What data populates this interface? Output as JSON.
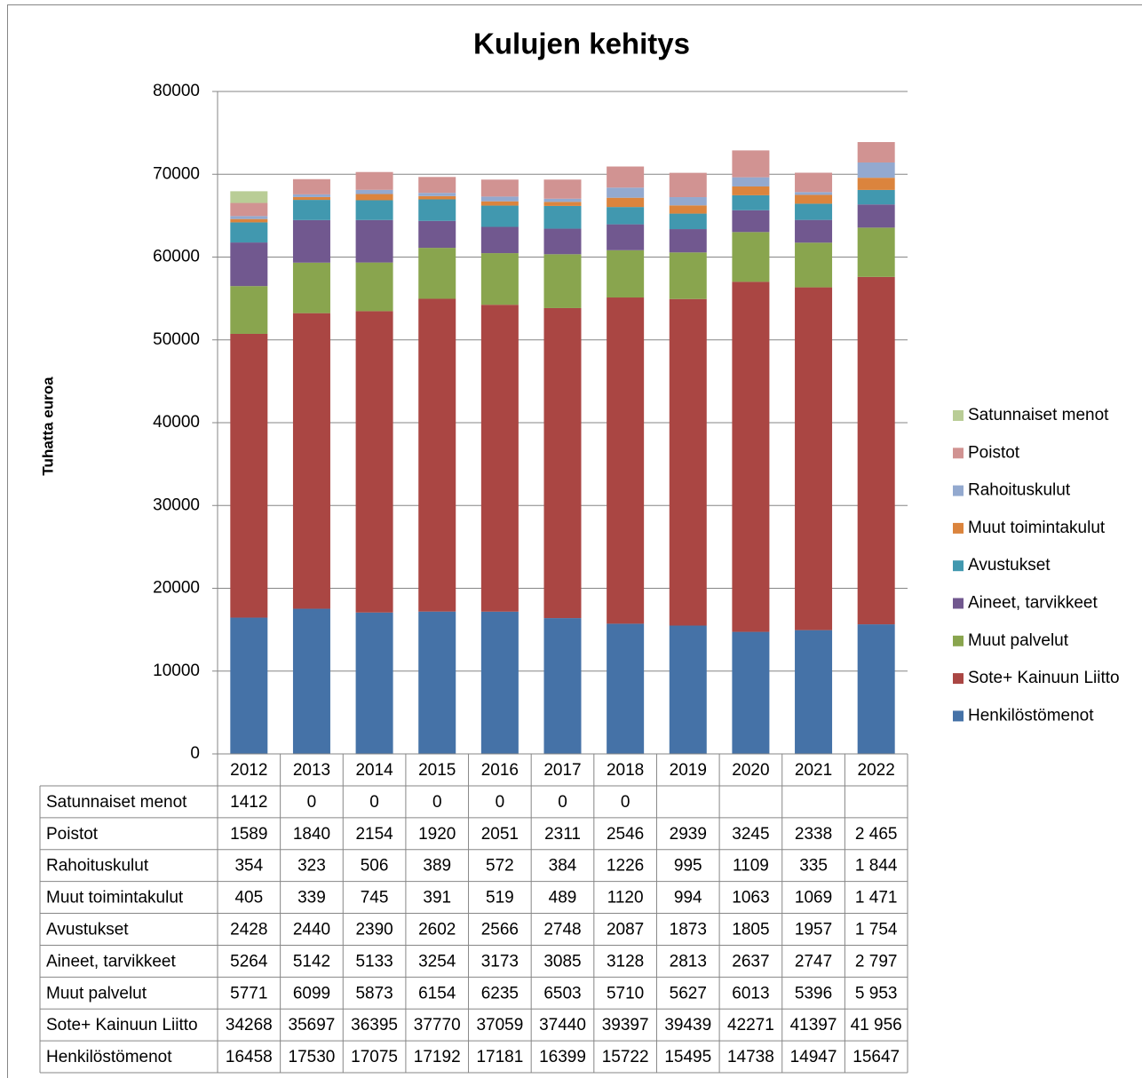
{
  "chart_data": {
    "type": "bar",
    "stacked": true,
    "title": "Kulujen kehitys",
    "y_label": "Tuhatta euroa",
    "categories": [
      "2012",
      "2013",
      "2014",
      "2015",
      "2016",
      "2017",
      "2018",
      "2019",
      "2020",
      "2021",
      "2022"
    ],
    "ylim": [
      0,
      80000
    ],
    "yticks": [
      0,
      10000,
      20000,
      30000,
      40000,
      50000,
      60000,
      70000,
      80000
    ],
    "grid": true,
    "legend": "right",
    "series": [
      {
        "name": "Henkilöstömenot",
        "color": "#4572A7",
        "values": [
          16458,
          17530,
          17075,
          17192,
          17181,
          16399,
          15722,
          15495,
          14738,
          14947,
          15647
        ]
      },
      {
        "name": "Sote+ Kainuun Liitto",
        "color": "#AA4643",
        "values": [
          34268,
          35697,
          36395,
          37770,
          37059,
          37440,
          39397,
          39439,
          42271,
          41397,
          41956
        ],
        "value_labels": [
          null,
          null,
          null,
          null,
          null,
          null,
          null,
          null,
          null,
          null,
          "41 956"
        ]
      },
      {
        "name": "Muut palvelut",
        "color": "#89A54E",
        "values": [
          5771,
          6099,
          5873,
          6154,
          6235,
          6503,
          5710,
          5627,
          6013,
          5396,
          5953
        ],
        "value_labels": [
          null,
          null,
          null,
          null,
          null,
          null,
          null,
          null,
          null,
          null,
          "5 953"
        ]
      },
      {
        "name": "Aineet, tarvikkeet",
        "color": "#71588F",
        "values": [
          5264,
          5142,
          5133,
          3254,
          3173,
          3085,
          3128,
          2813,
          2637,
          2747,
          2797
        ],
        "value_labels": [
          null,
          null,
          null,
          null,
          null,
          null,
          null,
          null,
          null,
          null,
          "2 797"
        ]
      },
      {
        "name": "Avustukset",
        "color": "#4198AF",
        "values": [
          2428,
          2440,
          2390,
          2602,
          2566,
          2748,
          2087,
          1873,
          1805,
          1957,
          1754
        ],
        "value_labels": [
          null,
          null,
          null,
          null,
          null,
          null,
          null,
          null,
          null,
          null,
          "1 754"
        ]
      },
      {
        "name": "Muut toimintakulut",
        "color": "#DB843D",
        "values": [
          405,
          339,
          745,
          391,
          519,
          489,
          1120,
          994,
          1063,
          1069,
          1471
        ],
        "value_labels": [
          null,
          null,
          null,
          null,
          null,
          null,
          null,
          null,
          null,
          null,
          "1 471"
        ]
      },
      {
        "name": "Rahoituskulut",
        "color": "#93A9CF",
        "values": [
          354,
          323,
          506,
          389,
          572,
          384,
          1226,
          995,
          1109,
          335,
          1844
        ],
        "value_labels": [
          null,
          null,
          null,
          null,
          null,
          null,
          null,
          null,
          null,
          null,
          "1 844"
        ]
      },
      {
        "name": "Poistot",
        "color": "#D19392",
        "values": [
          1589,
          1840,
          2154,
          1920,
          2051,
          2311,
          2546,
          2939,
          3245,
          2338,
          2465
        ],
        "value_labels": [
          null,
          null,
          null,
          null,
          null,
          null,
          null,
          null,
          null,
          null,
          "2 465"
        ]
      },
      {
        "name": "Satunnaiset menot",
        "color": "#B9CD96",
        "values": [
          1412,
          0,
          0,
          0,
          0,
          0,
          0,
          null,
          null,
          null,
          null
        ]
      }
    ]
  }
}
